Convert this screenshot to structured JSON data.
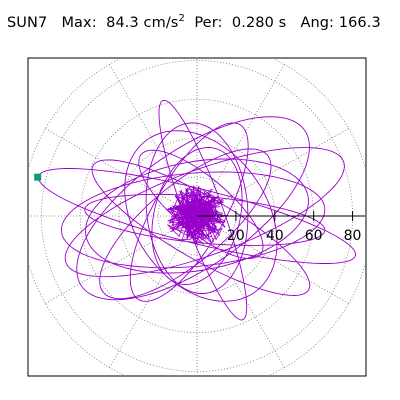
{
  "header": {
    "station": "SUN7",
    "max_label": "Max:",
    "max_value": "84.3 cm/s",
    "max_exp": "2",
    "per_label": "Per:",
    "per_value": "0.280 s",
    "ang_label": "Ang:",
    "ang_value": "166.3"
  },
  "chart_data": {
    "type": "polar-orbit",
    "max_acceleration": 84.3,
    "max_acceleration_unit": "cm/s²",
    "period_s": 0.28,
    "angle_deg": 166.3,
    "radial_ticks": [
      20,
      40,
      60,
      80
    ],
    "radial_tick_labels": [
      "20",
      "40",
      "60",
      "80"
    ],
    "rmax": 90,
    "grid": "dotted",
    "angular_grid_step_deg": 30,
    "series_color": "#9900cc",
    "marker_color": "#119977",
    "marker": {
      "angle_deg": 166.3,
      "r": 84.3
    }
  }
}
